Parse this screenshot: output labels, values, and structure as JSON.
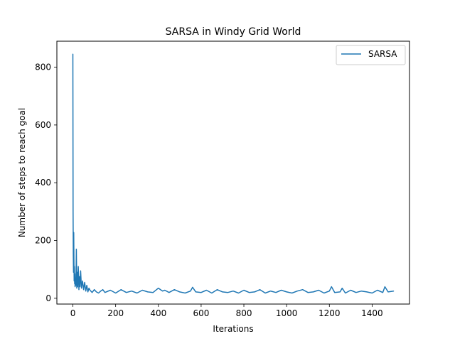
{
  "chart_data": {
    "type": "line",
    "title": "SARSA in Windy Grid World",
    "xlabel": "Iterations",
    "ylabel": "Number of steps to reach goal",
    "xlim": [
      -75,
      1575
    ],
    "ylim": [
      -20,
      890
    ],
    "xticks": [
      0,
      200,
      400,
      600,
      800,
      1000,
      1200,
      1400
    ],
    "yticks": [
      0,
      200,
      400,
      600,
      800
    ],
    "grid": false,
    "legend_position": "top-right",
    "series": [
      {
        "name": "SARSA",
        "color": "#1f77b4",
        "x": [
          0,
          1,
          2,
          3,
          4,
          5,
          6,
          7,
          8,
          9,
          10,
          12,
          14,
          16,
          18,
          20,
          22,
          25,
          28,
          30,
          33,
          36,
          40,
          45,
          50,
          55,
          60,
          65,
          70,
          75,
          80,
          90,
          100,
          110,
          120,
          130,
          140,
          150,
          175,
          200,
          225,
          250,
          275,
          300,
          325,
          350,
          375,
          400,
          410,
          420,
          430,
          450,
          475,
          500,
          525,
          550,
          560,
          575,
          600,
          625,
          650,
          675,
          700,
          725,
          750,
          775,
          800,
          825,
          850,
          875,
          900,
          925,
          950,
          975,
          1000,
          1025,
          1050,
          1075,
          1100,
          1125,
          1150,
          1175,
          1200,
          1210,
          1225,
          1250,
          1260,
          1275,
          1300,
          1325,
          1350,
          1375,
          1400,
          1425,
          1450,
          1460,
          1475,
          1500
        ],
        "y": [
          845,
          300,
          150,
          90,
          228,
          130,
          60,
          110,
          50,
          85,
          40,
          70,
          45,
          170,
          35,
          90,
          40,
          110,
          30,
          75,
          40,
          95,
          35,
          60,
          30,
          55,
          25,
          45,
          22,
          35,
          28,
          20,
          30,
          22,
          18,
          25,
          30,
          20,
          28,
          18,
          30,
          20,
          25,
          18,
          28,
          22,
          20,
          35,
          30,
          25,
          28,
          20,
          30,
          22,
          18,
          25,
          38,
          22,
          20,
          28,
          18,
          30,
          22,
          20,
          25,
          18,
          28,
          20,
          22,
          30,
          18,
          25,
          20,
          28,
          22,
          18,
          25,
          30,
          20,
          22,
          28,
          18,
          25,
          40,
          20,
          22,
          35,
          18,
          28,
          20,
          25,
          22,
          18,
          28,
          20,
          40,
          22,
          25
        ]
      }
    ]
  }
}
